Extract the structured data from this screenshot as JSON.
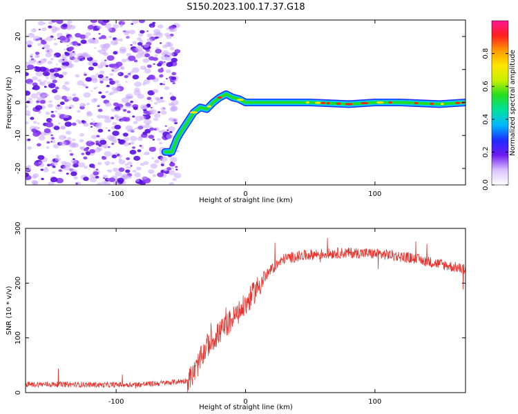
{
  "title": "S150.2023.100.17.37.G18",
  "colors": {
    "scatter": "#7b2ff7",
    "snr_line": "#e8302a",
    "colormap": [
      "#ffffff",
      "#d9c2ff",
      "#6f1bf0",
      "#1d2cff",
      "#00b7ff",
      "#00e0a0",
      "#22dd22",
      "#c8f000",
      "#ffe600",
      "#ff9a00",
      "#ff1f1f",
      "#ff1493"
    ]
  },
  "chart_data": [
    {
      "type": "heatmap",
      "xlabel": "Height of straight line (km)",
      "ylabel": "Frequency (Hz)",
      "xlim": [
        -170,
        170
      ],
      "ylim": [
        -25,
        25
      ],
      "x_ticks": [
        -100,
        0,
        100
      ],
      "y_ticks": [
        -20,
        -10,
        0,
        10,
        20
      ],
      "colorbar": {
        "label": "Normalized spectral amplitude",
        "range": [
          0,
          1
        ],
        "ticks": [
          0.0,
          0.2,
          0.4,
          0.6,
          0.8
        ]
      },
      "noise_region_x": [
        -170,
        -52
      ],
      "trace": {
        "x": [
          -62,
          -57,
          -53,
          -50,
          -45,
          -40,
          -35,
          -30,
          -25,
          -20,
          -15,
          -10,
          -5,
          0,
          20,
          50,
          80,
          100,
          120,
          150,
          170
        ],
        "y": [
          -15,
          -15,
          -11,
          -9,
          -6,
          -3,
          -1.5,
          -2,
          0,
          1.5,
          2.5,
          1.5,
          1,
          0,
          0,
          0,
          -0.5,
          0,
          0,
          -0.5,
          0
        ]
      }
    },
    {
      "type": "line",
      "xlabel": "Height of straight line (km)",
      "ylabel": "SNR (10 * v/v)",
      "xlim": [
        -170,
        170
      ],
      "ylim": [
        0,
        300
      ],
      "x_ticks": [
        -100,
        0,
        100
      ],
      "y_ticks": [
        0,
        100,
        200,
        300
      ],
      "series": [
        {
          "x": [
            -170,
            -140,
            -110,
            -80,
            -60,
            -45,
            -40,
            -35,
            -30,
            -20,
            -10,
            0,
            10,
            20,
            30,
            50,
            70,
            90,
            110,
            130,
            150,
            170
          ],
          "y": [
            15,
            15,
            14,
            15,
            18,
            22,
            35,
            60,
            85,
            110,
            135,
            160,
            195,
            225,
            245,
            252,
            255,
            255,
            252,
            245,
            235,
            225
          ]
        }
      ]
    }
  ]
}
